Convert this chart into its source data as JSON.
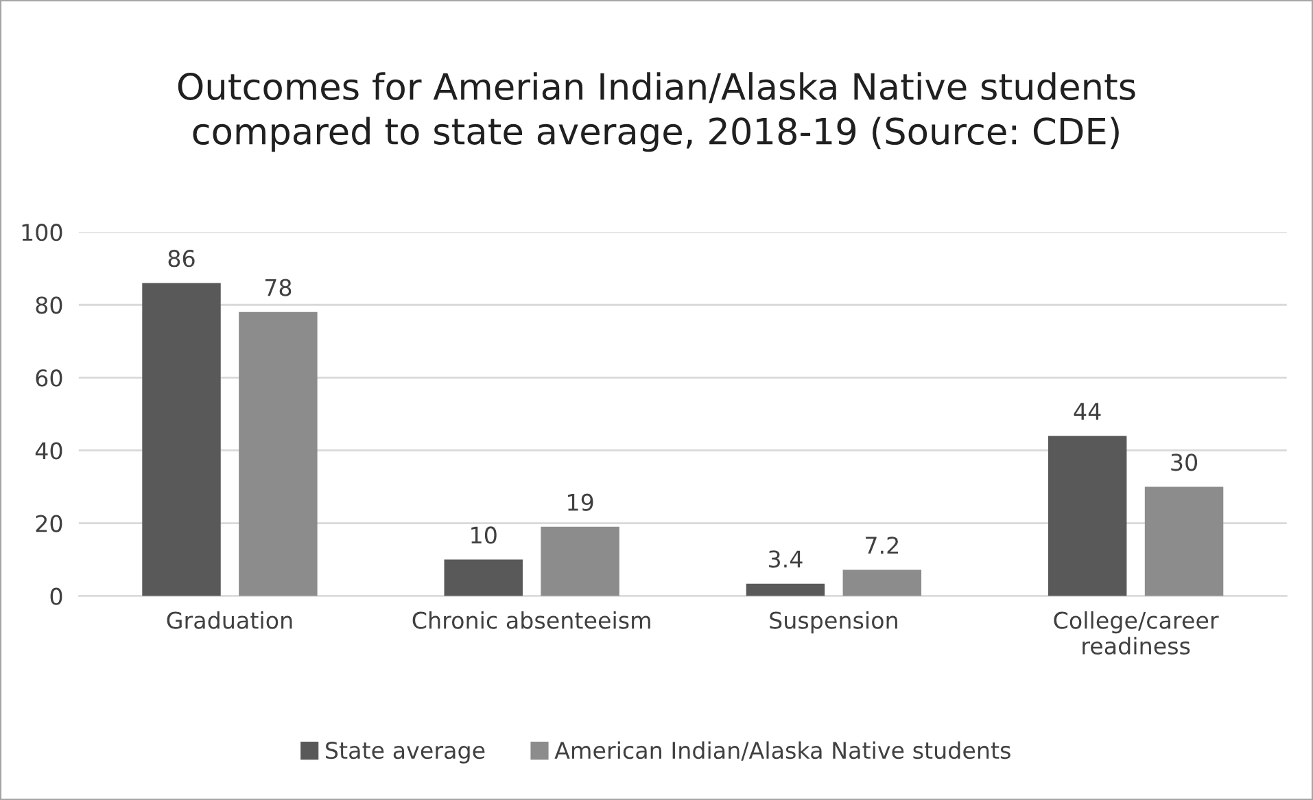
{
  "chart_data": {
    "type": "bar",
    "title": "Outcomes for Amerian Indian/Alaska Native students\ncompared to state average, 2018-19 (Source: CDE)",
    "categories": [
      "Graduation",
      "Chronic absenteeism",
      "Suspension",
      "College/career\nreadiness"
    ],
    "series": [
      {
        "name": "State average",
        "color": "#595959",
        "values": [
          86,
          10,
          3.4,
          44
        ]
      },
      {
        "name": "American Indian/Alaska Native students",
        "color": "#8c8c8c",
        "values": [
          78,
          19,
          7.2,
          30
        ]
      }
    ],
    "ylim": [
      0,
      100
    ],
    "yticks": [
      0,
      20,
      40,
      60,
      80,
      100
    ],
    "grid": "y",
    "legend": "bottom",
    "data_labels": true
  }
}
